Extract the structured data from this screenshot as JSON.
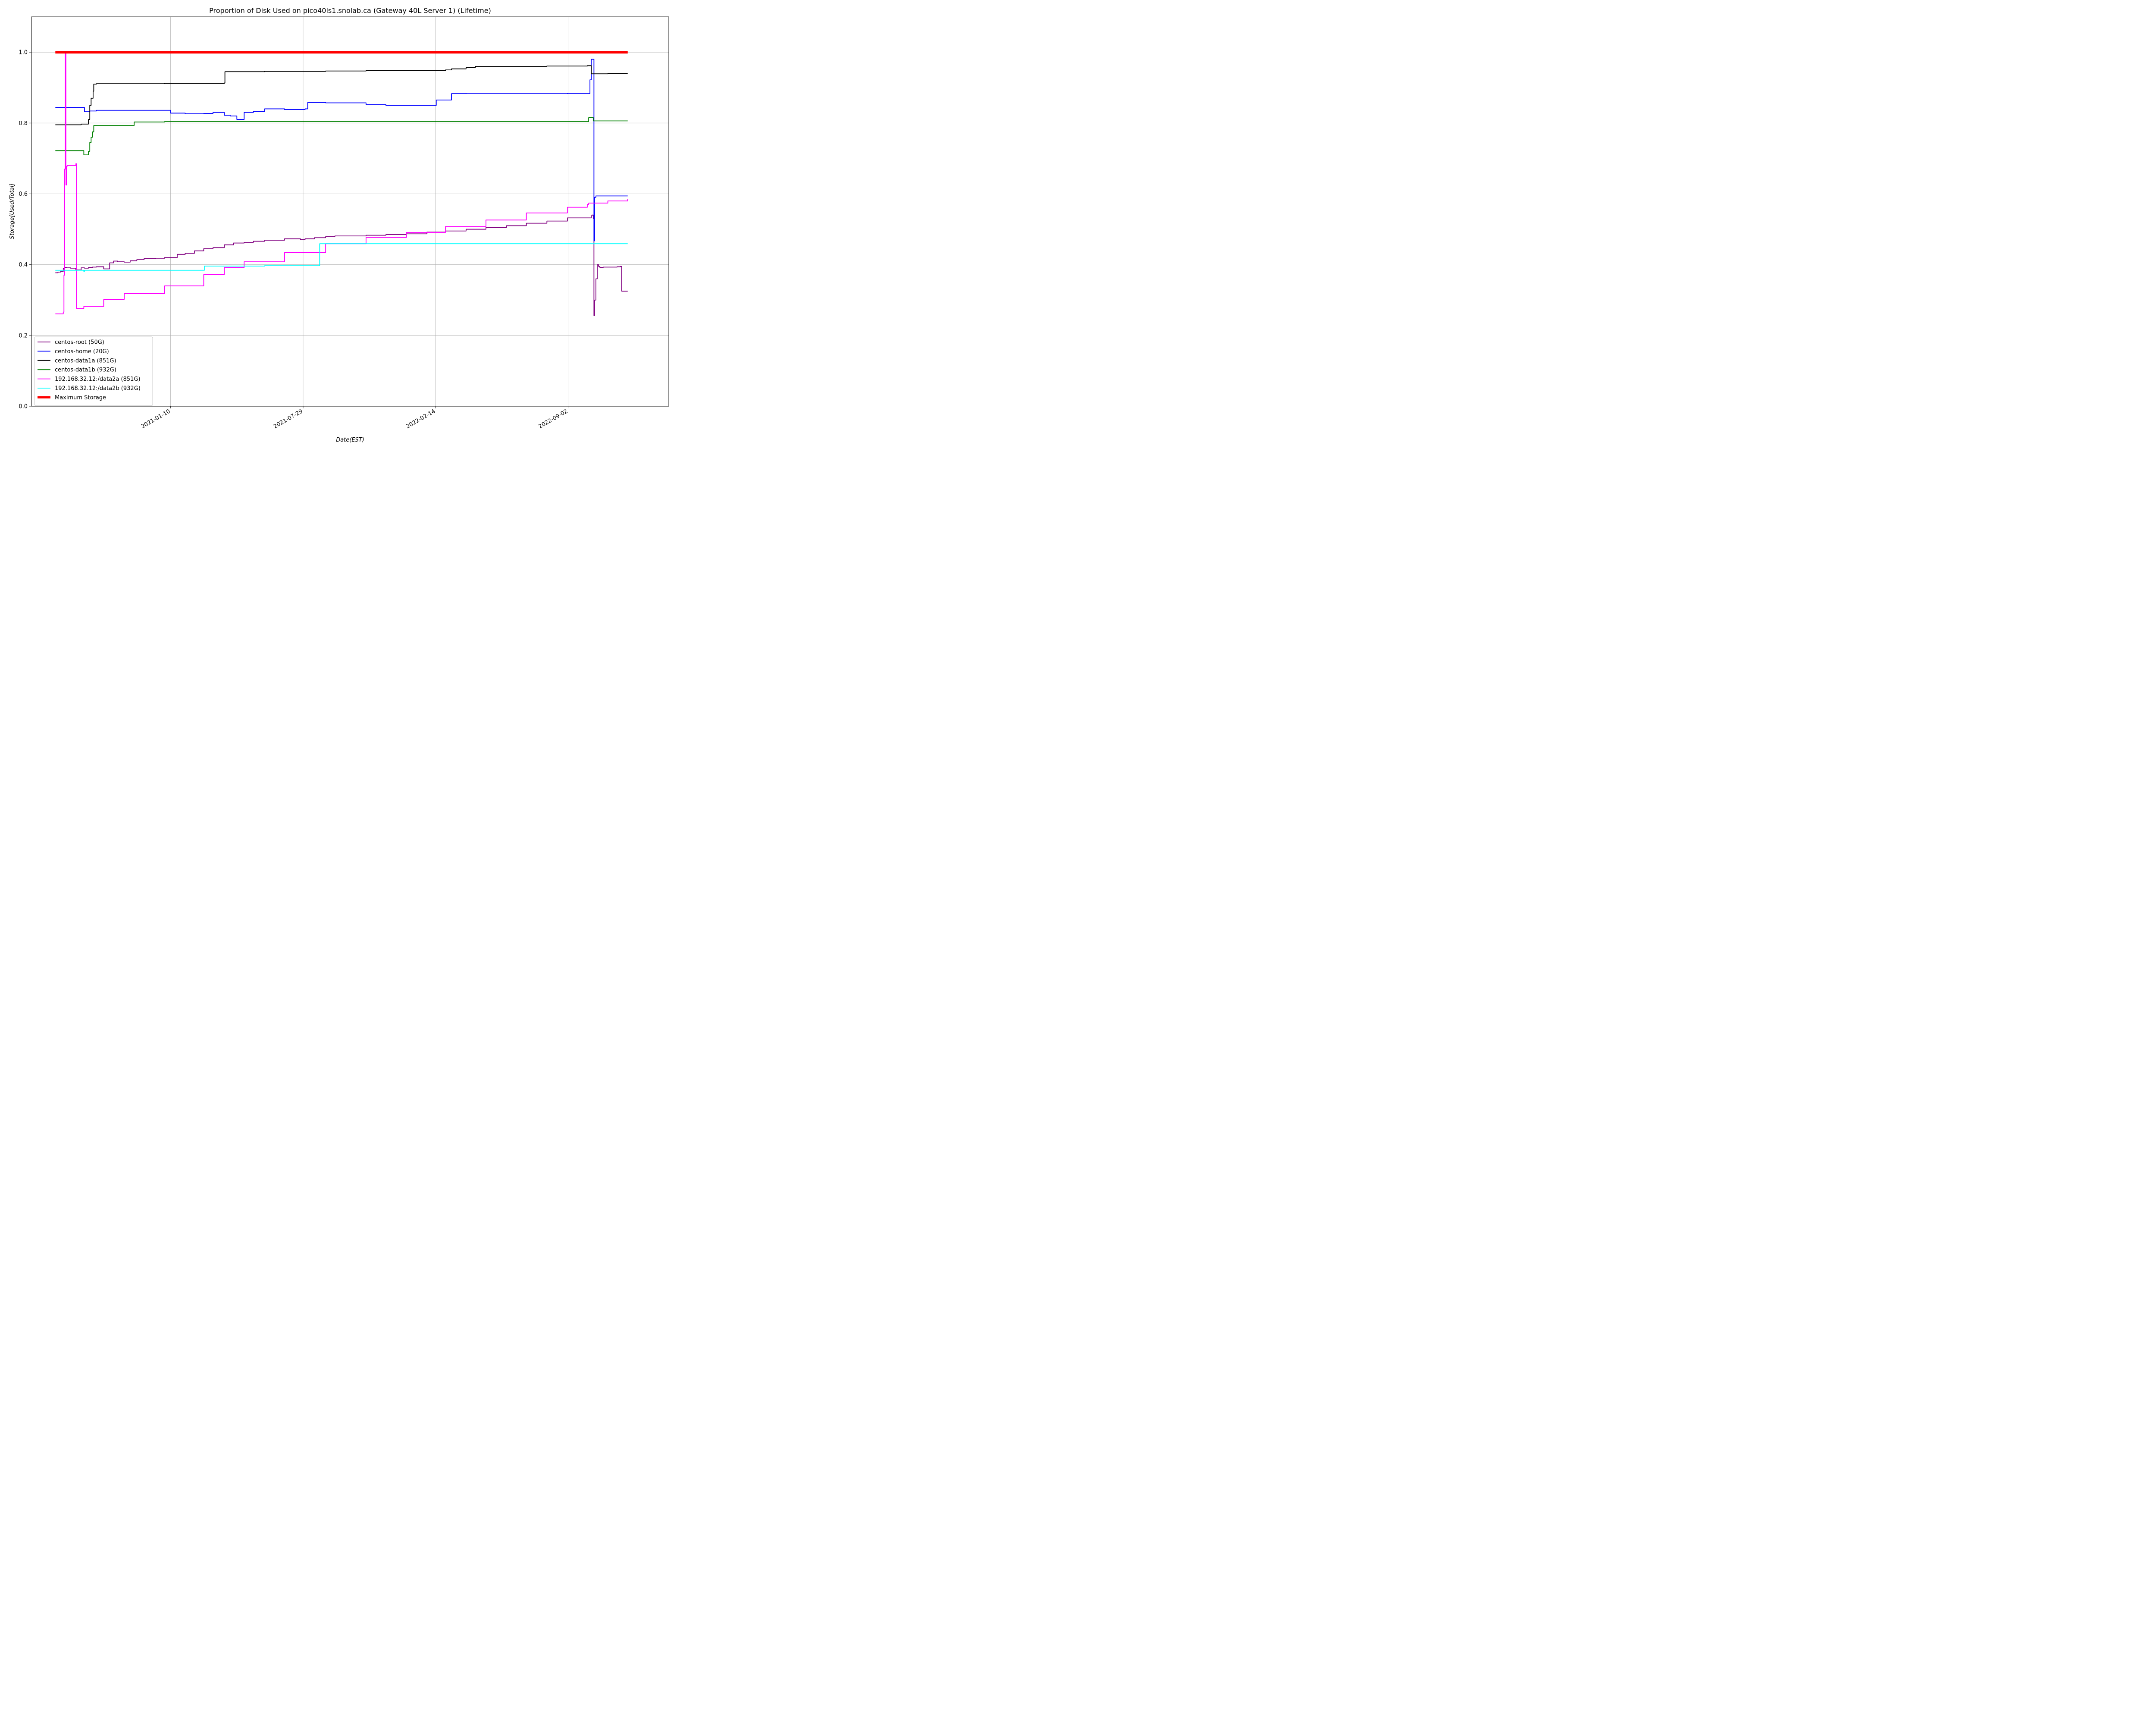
{
  "chart_data": {
    "type": "line",
    "title": "Proportion of Disk Used on pico40ls1.snolab.ca (Gateway 40L Server 1) (Lifetime)",
    "xlabel": "Date(EST)",
    "ylabel": "Storage[Used/Total]",
    "x_type": "date",
    "xlim": [
      "2020-06-14",
      "2023-02-01"
    ],
    "ylim": [
      0,
      1.1
    ],
    "y_ticks": [
      0.0,
      0.2,
      0.4,
      0.6,
      0.8,
      1.0
    ],
    "y_tick_labels": [
      "0.0",
      "0.2",
      "0.4",
      "0.6",
      "0.8",
      "1.0"
    ],
    "x_ticks": [
      "2021-01-10",
      "2021-07-29",
      "2022-02-14",
      "2022-09-02"
    ],
    "grid": true,
    "legend_position": "lower-left",
    "series": [
      {
        "name": "centos-root (50G)",
        "color": "#800080",
        "width": 1.8,
        "x": [
          "2020-07-20",
          "2020-07-24",
          "2020-07-28",
          "2020-08-01",
          "2020-08-03",
          "2020-08-06",
          "2020-08-12",
          "2020-08-20",
          "2020-08-28",
          "2020-09-02",
          "2020-09-08",
          "2020-09-14",
          "2020-09-20",
          "2020-10-01",
          "2020-10-10",
          "2020-10-16",
          "2020-10-22",
          "2020-11-01",
          "2020-11-10",
          "2020-11-20",
          "2020-12-01",
          "2020-12-10",
          "2020-12-18",
          "2021-01-01",
          "2021-01-20",
          "2021-02-01",
          "2021-02-15",
          "2021-03-01",
          "2021-03-15",
          "2021-04-01",
          "2021-04-15",
          "2021-05-01",
          "2021-05-15",
          "2021-06-01",
          "2021-07-01",
          "2021-07-25",
          "2021-08-01",
          "2021-08-15",
          "2021-09-01",
          "2021-09-15",
          "2021-10-01",
          "2021-11-01",
          "2021-12-01",
          "2022-01-01",
          "2022-02-01",
          "2022-03-01",
          "2022-04-01",
          "2022-05-01",
          "2022-06-01",
          "2022-07-01",
          "2022-08-01",
          "2022-09-01",
          "2022-10-07",
          "2022-10-08",
          "2022-10-10",
          "2022-10-11",
          "2022-10-12",
          "2022-10-14",
          "2022-10-16",
          "2022-10-18",
          "2022-10-20",
          "2022-10-25",
          "2022-11-15",
          "2022-11-20",
          "2022-11-22",
          "2022-12-01"
        ],
        "values": [
          0.377,
          0.379,
          0.381,
          0.389,
          0.392,
          0.391,
          0.39,
          0.385,
          0.391,
          0.39,
          0.392,
          0.393,
          0.394,
          0.388,
          0.405,
          0.41,
          0.408,
          0.407,
          0.411,
          0.414,
          0.417,
          0.417,
          0.418,
          0.42,
          0.429,
          0.432,
          0.439,
          0.445,
          0.448,
          0.456,
          0.461,
          0.463,
          0.466,
          0.469,
          0.473,
          0.471,
          0.473,
          0.476,
          0.479,
          0.481,
          0.481,
          0.483,
          0.485,
          0.487,
          0.492,
          0.495,
          0.5,
          0.505,
          0.51,
          0.517,
          0.523,
          0.532,
          0.538,
          0.54,
          0.53,
          0.256,
          0.3,
          0.36,
          0.4,
          0.395,
          0.392,
          0.393,
          0.394,
          0.395,
          0.325,
          0.325
        ]
      },
      {
        "name": "centos-home (20G)",
        "color": "#0000ff",
        "width": 1.8,
        "x": [
          "2020-07-20",
          "2020-08-28",
          "2020-09-02",
          "2020-09-10",
          "2020-09-20",
          "2020-10-01",
          "2020-11-01",
          "2020-12-01",
          "2021-01-01",
          "2021-01-10",
          "2021-02-01",
          "2021-03-01",
          "2021-03-15",
          "2021-04-01",
          "2021-04-10",
          "2021-04-20",
          "2021-05-01",
          "2021-05-15",
          "2021-06-01",
          "2021-07-01",
          "2021-07-15",
          "2021-08-01",
          "2021-08-05",
          "2021-09-01",
          "2021-10-01",
          "2021-10-15",
          "2021-11-01",
          "2021-12-01",
          "2022-01-01",
          "2022-02-01",
          "2022-02-15",
          "2022-03-01",
          "2022-03-10",
          "2022-04-01",
          "2022-05-01",
          "2022-06-01",
          "2022-09-01",
          "2022-10-01",
          "2022-10-05",
          "2022-10-07",
          "2022-10-10",
          "2022-10-11",
          "2022-10-12",
          "2022-10-14",
          "2022-11-01",
          "2022-12-01"
        ],
        "values": [
          0.844,
          0.844,
          0.832,
          0.834,
          0.836,
          0.836,
          0.836,
          0.836,
          0.836,
          0.828,
          0.826,
          0.827,
          0.83,
          0.822,
          0.82,
          0.81,
          0.83,
          0.833,
          0.84,
          0.838,
          0.838,
          0.84,
          0.858,
          0.857,
          0.857,
          0.857,
          0.852,
          0.85,
          0.85,
          0.85,
          0.865,
          0.865,
          0.883,
          0.884,
          0.884,
          0.884,
          0.883,
          0.883,
          0.922,
          0.98,
          0.98,
          0.467,
          0.59,
          0.594,
          0.594,
          0.594
        ]
      },
      {
        "name": "centos-data1a (851G)",
        "color": "#000000",
        "width": 1.8,
        "x": [
          "2020-07-20",
          "2020-08-10",
          "2020-08-28",
          "2020-09-08",
          "2020-09-10",
          "2020-09-12",
          "2020-09-15",
          "2020-09-16",
          "2020-09-20",
          "2021-01-01",
          "2021-04-01",
          "2021-04-02",
          "2021-06-01",
          "2021-09-01",
          "2021-11-01",
          "2022-01-01",
          "2022-02-01",
          "2022-03-01",
          "2022-03-10",
          "2022-04-01",
          "2022-04-15",
          "2022-05-01",
          "2022-06-01",
          "2022-08-01",
          "2022-10-01",
          "2022-10-05",
          "2022-10-07",
          "2022-10-20",
          "2022-11-01",
          "2022-12-01"
        ],
        "values": [
          0.795,
          0.795,
          0.797,
          0.81,
          0.85,
          0.87,
          0.89,
          0.91,
          0.911,
          0.912,
          0.913,
          0.945,
          0.946,
          0.947,
          0.948,
          0.948,
          0.948,
          0.95,
          0.953,
          0.957,
          0.96,
          0.96,
          0.96,
          0.961,
          0.962,
          0.962,
          0.939,
          0.939,
          0.94,
          0.94
        ]
      },
      {
        "name": "centos-data1b (932G)",
        "color": "#008000",
        "width": 1.8,
        "x": [
          "2020-07-20",
          "2020-08-28",
          "2020-09-01",
          "2020-09-08",
          "2020-09-10",
          "2020-09-12",
          "2020-09-14",
          "2020-09-16",
          "2020-09-20",
          "2020-11-15",
          "2020-11-16",
          "2021-01-01",
          "2021-06-01",
          "2022-01-01",
          "2022-06-01",
          "2022-10-01",
          "2022-10-03",
          "2022-10-07",
          "2022-10-10",
          "2022-12-01"
        ],
        "values": [
          0.722,
          0.722,
          0.71,
          0.72,
          0.745,
          0.76,
          0.775,
          0.793,
          0.793,
          0.793,
          0.803,
          0.804,
          0.804,
          0.804,
          0.804,
          0.804,
          0.815,
          0.815,
          0.806,
          0.806
        ]
      },
      {
        "name": "192.168.32.12:/data2a (851G)",
        "color": "#ff00ff",
        "width": 1.8,
        "x": [
          "2020-07-20",
          "2020-08-01",
          "2020-08-02",
          "2020-08-03",
          "2020-08-04",
          "2020-08-05",
          "2020-08-06",
          "2020-08-07",
          "2020-08-10",
          "2020-08-20",
          "2020-08-21",
          "2020-09-01",
          "2020-10-01",
          "2020-11-01",
          "2021-01-01",
          "2021-03-01",
          "2021-04-01",
          "2021-05-01",
          "2021-07-01",
          "2021-09-01",
          "2021-11-01",
          "2022-01-01",
          "2022-03-01",
          "2022-05-01",
          "2022-07-01",
          "2022-09-01",
          "2022-10-01",
          "2022-10-03",
          "2022-11-01",
          "2022-12-01"
        ],
        "values": [
          0.261,
          0.266,
          0.37,
          0.67,
          1.0,
          0.625,
          0.678,
          0.68,
          0.68,
          0.685,
          0.276,
          0.282,
          0.302,
          0.318,
          0.34,
          0.372,
          0.392,
          0.408,
          0.434,
          0.459,
          0.477,
          0.491,
          0.508,
          0.526,
          0.546,
          0.562,
          0.57,
          0.574,
          0.58,
          0.586
        ]
      },
      {
        "name": "192.168.32.12:/data2b (932G)",
        "color": "#00ffff",
        "width": 1.8,
        "x": [
          "2020-07-20",
          "2020-08-28",
          "2020-09-01",
          "2020-09-02",
          "2021-03-01",
          "2021-03-02",
          "2021-06-01",
          "2021-08-22",
          "2021-08-23",
          "2022-06-01",
          "2022-12-01"
        ],
        "values": [
          0.384,
          0.384,
          0.381,
          0.384,
          0.384,
          0.396,
          0.397,
          0.397,
          0.459,
          0.459,
          0.459
        ]
      },
      {
        "name": "Maximum Storage",
        "color": "#ff0000",
        "width": 6,
        "x": [
          "2020-07-20",
          "2022-12-01"
        ],
        "values": [
          1.0,
          1.0
        ]
      }
    ]
  }
}
